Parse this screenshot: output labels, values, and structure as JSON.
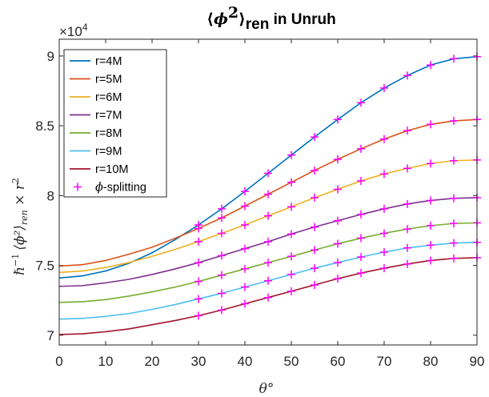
{
  "chart_data": {
    "type": "line",
    "title": "⟨ϕ²⟩ren in Unruh",
    "title_parts": {
      "bracket_open": "⟨",
      "phi": "ϕ",
      "power": "2",
      "bracket_close": "⟩",
      "sub": "ren",
      "rest": " in Unruh"
    },
    "xlabel": "θ°",
    "ylabel": "ℏ⁻¹ ⟨ϕ²⟩ren × r²",
    "ylabel_parts": {
      "hbar": "ℏ",
      "minus_one": "−1",
      "phi_sq": "⟨ϕ²⟩",
      "ren": "ren",
      "times_r": " × r",
      "r_sq": "2"
    },
    "y_exponent_label": "×10",
    "y_exponent_power": "4",
    "xlim": [
      0,
      90
    ],
    "ylim": [
      69300,
      91200
    ],
    "x_ticks": [
      0,
      10,
      20,
      30,
      40,
      50,
      60,
      70,
      80,
      90
    ],
    "x_tick_labels": [
      "0",
      "10",
      "20",
      "30",
      "40",
      "50",
      "60",
      "70",
      "80",
      "90"
    ],
    "y_ticks": [
      70000,
      75000,
      80000,
      85000,
      90000
    ],
    "y_tick_labels": [
      "7",
      "7.5",
      "8",
      "8.5",
      "9"
    ],
    "grid": false,
    "legend_position": "top-left",
    "x": [
      0,
      5,
      10,
      15,
      20,
      25,
      30,
      35,
      40,
      45,
      50,
      55,
      60,
      65,
      70,
      75,
      80,
      85,
      90
    ],
    "series": [
      {
        "name": "r=4M",
        "color": "#0072BD",
        "values": [
          74100,
          74250,
          74600,
          75150,
          75900,
          76850,
          77900,
          79050,
          80300,
          81600,
          82900,
          84200,
          85450,
          86650,
          87700,
          88600,
          89350,
          89800,
          89950
        ]
      },
      {
        "name": "r=5M",
        "color": "#D95319",
        "values": [
          74950,
          75050,
          75350,
          75800,
          76300,
          76950,
          77650,
          78400,
          79250,
          80100,
          80950,
          81800,
          82600,
          83350,
          84050,
          84650,
          85100,
          85350,
          85450
        ]
      },
      {
        "name": "r=6M",
        "color": "#EDB120",
        "values": [
          74500,
          74600,
          74850,
          75200,
          75650,
          76150,
          76700,
          77300,
          77900,
          78550,
          79200,
          79850,
          80450,
          81050,
          81550,
          81950,
          82300,
          82500,
          82550
        ]
      },
      {
        "name": "r=7M",
        "color": "#7E2F8E",
        "values": [
          73500,
          73550,
          73750,
          74000,
          74350,
          74750,
          75200,
          75700,
          76200,
          76700,
          77250,
          77750,
          78200,
          78650,
          79050,
          79400,
          79650,
          79800,
          79850
        ]
      },
      {
        "name": "r=8M",
        "color": "#77AC30",
        "values": [
          72350,
          72400,
          72550,
          72800,
          73100,
          73450,
          73850,
          74300,
          74750,
          75200,
          75650,
          76100,
          76550,
          76950,
          77300,
          77600,
          77850,
          78000,
          78050
        ]
      },
      {
        "name": "r=9M",
        "color": "#4DBEEE",
        "values": [
          71150,
          71200,
          71350,
          71550,
          71850,
          72200,
          72600,
          73000,
          73450,
          73900,
          74350,
          74800,
          75200,
          75600,
          75950,
          76250,
          76450,
          76600,
          76650
        ]
      },
      {
        "name": "r=10M",
        "color": "#A2142F",
        "values": [
          70050,
          70100,
          70250,
          70450,
          70750,
          71050,
          71400,
          71800,
          72250,
          72700,
          73150,
          73600,
          74050,
          74450,
          74800,
          75100,
          75350,
          75500,
          75550
        ]
      }
    ],
    "marker_series": {
      "name": "ϕ-splitting",
      "color": "#FF00FF",
      "marker": "+",
      "x": [
        30,
        35,
        40,
        45,
        50,
        55,
        60,
        65,
        70,
        75,
        80,
        85,
        90
      ]
    }
  }
}
